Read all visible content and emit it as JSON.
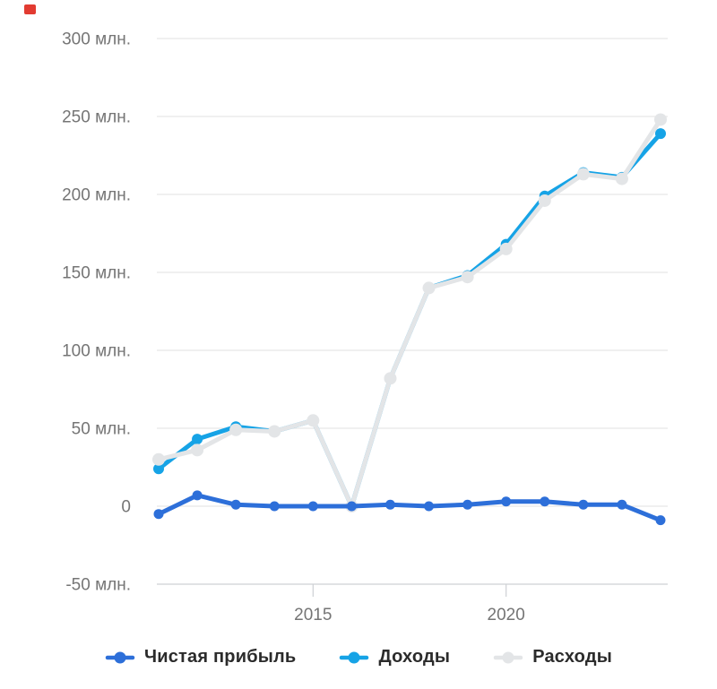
{
  "red_marker": {
    "color": "#e23b31"
  },
  "chart_data": {
    "type": "line",
    "title": "",
    "x": [
      2011,
      2012,
      2013,
      2014,
      2015,
      2016,
      2017,
      2018,
      2019,
      2020,
      2021,
      2022,
      2023,
      2024
    ],
    "series": [
      {
        "id": "net-profit",
        "name": "Чистая прибыль",
        "color": "#2d6fd9",
        "values": [
          -5,
          7,
          1,
          0,
          0,
          0,
          1,
          0,
          1,
          3,
          3,
          1,
          1,
          -9
        ]
      },
      {
        "id": "revenue",
        "name": "Доходы",
        "color": "#16a3e6",
        "values": [
          24,
          43,
          51,
          48,
          55,
          0,
          82,
          140,
          148,
          168,
          199,
          214,
          211,
          239
        ]
      },
      {
        "id": "expenses",
        "name": "Расходы",
        "color": "#e3e5e7",
        "values": [
          30,
          36,
          49,
          48,
          55,
          0,
          82,
          140,
          147,
          165,
          196,
          213,
          210,
          248
        ]
      }
    ],
    "y_axis": {
      "min": -50,
      "max": 300,
      "step": 50,
      "unit": "млн.",
      "ticks": [
        {
          "value": 300,
          "label": "300 млн."
        },
        {
          "value": 250,
          "label": "250 млн."
        },
        {
          "value": 200,
          "label": "200 млн."
        },
        {
          "value": 150,
          "label": "150 млн."
        },
        {
          "value": 100,
          "label": "100 млн."
        },
        {
          "value": 50,
          "label": "50 млн."
        },
        {
          "value": 0,
          "label": "0"
        },
        {
          "value": -50,
          "label": "-50 млн."
        }
      ]
    },
    "x_axis": {
      "ticks": [
        {
          "value": 2015,
          "label": "2015"
        },
        {
          "value": 2020,
          "label": "2020"
        }
      ]
    },
    "grid": true,
    "legend_position": "bottom",
    "style": {
      "grid_color": "#e6e6e6",
      "axis_color": "#cdd0d4",
      "tick_label_color": "#757575"
    }
  }
}
